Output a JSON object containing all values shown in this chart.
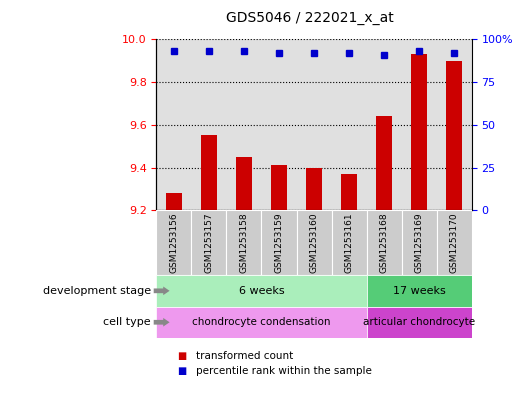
{
  "title": "GDS5046 / 222021_x_at",
  "samples": [
    "GSM1253156",
    "GSM1253157",
    "GSM1253158",
    "GSM1253159",
    "GSM1253160",
    "GSM1253161",
    "GSM1253168",
    "GSM1253169",
    "GSM1253170"
  ],
  "transformed_count": [
    9.28,
    9.55,
    9.45,
    9.41,
    9.4,
    9.37,
    9.64,
    9.93,
    9.9
  ],
  "percentile_rank": [
    93,
    93,
    93,
    92,
    92,
    92,
    91,
    93,
    92
  ],
  "ylim_left": [
    9.2,
    10.0
  ],
  "ylim_right": [
    0,
    100
  ],
  "yticks_left": [
    9.2,
    9.4,
    9.6,
    9.8,
    10.0
  ],
  "yticks_right": [
    0,
    25,
    50,
    75,
    100
  ],
  "ytick_labels_right": [
    "0",
    "25",
    "50",
    "75",
    "100%"
  ],
  "bar_color": "#cc0000",
  "dot_color": "#0000cc",
  "plot_bg_color": "#e0e0e0",
  "groups": {
    "development_stage": [
      {
        "label": "6 weeks",
        "start": 0,
        "end": 6,
        "color": "#aaeebb"
      },
      {
        "label": "17 weeks",
        "start": 6,
        "end": 9,
        "color": "#55cc77"
      }
    ],
    "cell_type": [
      {
        "label": "chondrocyte condensation",
        "start": 0,
        "end": 6,
        "color": "#ee99ee"
      },
      {
        "label": "articular chondrocyte",
        "start": 6,
        "end": 9,
        "color": "#cc44cc"
      }
    ]
  },
  "legend": [
    {
      "label": "transformed count",
      "color": "#cc0000"
    },
    {
      "label": "percentile rank within the sample",
      "color": "#0000cc"
    }
  ],
  "row_labels": [
    "development stage",
    "cell type"
  ]
}
